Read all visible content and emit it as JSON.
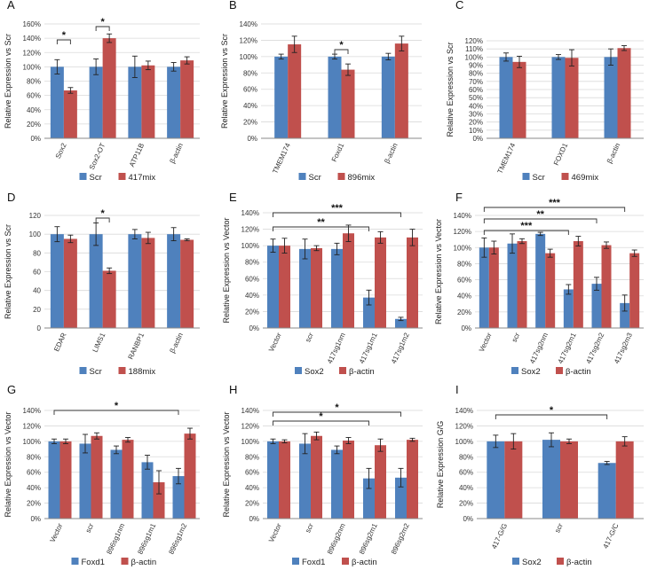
{
  "figure": {
    "colors": {
      "blue": "#4f81bd",
      "red": "#c0504d",
      "grid": "#d9d9d9",
      "axis": "#888888",
      "err": "#222222"
    }
  },
  "chart_data": [
    {
      "panel": "A",
      "type": "bar",
      "ylabel": "Relative Expression vs Scr",
      "ylim": [
        0,
        160
      ],
      "yticks": [
        "0%",
        "20%",
        "40%",
        "60%",
        "80%",
        "100%",
        "120%",
        "140%",
        "160%"
      ],
      "categories": [
        "Sox2",
        "Sox2-OT",
        "ATP11B",
        "β-actin"
      ],
      "series": [
        {
          "name": "Scr",
          "color": "blue",
          "values": [
            100,
            100,
            100,
            100
          ],
          "errors": [
            10,
            11,
            15,
            6
          ]
        },
        {
          "name": "417mix",
          "color": "red",
          "values": [
            67,
            140,
            102,
            109
          ],
          "errors": [
            4,
            6,
            6,
            5
          ]
        }
      ],
      "significance": [
        {
          "from": [
            0,
            0
          ],
          "to": [
            0,
            1
          ],
          "label": "*"
        },
        {
          "from": [
            1,
            0
          ],
          "to": [
            1,
            1
          ],
          "label": "*"
        }
      ]
    },
    {
      "panel": "B",
      "type": "bar",
      "ylabel": "Relative Expression vs Scr",
      "ylim": [
        0,
        140
      ],
      "yticks": [
        "0%",
        "20%",
        "40%",
        "60%",
        "80%",
        "100%",
        "120%",
        "140%"
      ],
      "categories": [
        "TMEM174",
        "Foxd1",
        "β-actin"
      ],
      "series": [
        {
          "name": "Scr",
          "color": "blue",
          "values": [
            100,
            100,
            100
          ],
          "errors": [
            3,
            3,
            4
          ]
        },
        {
          "name": "896mix",
          "color": "red",
          "values": [
            115,
            84,
            116
          ],
          "errors": [
            10,
            7,
            9
          ]
        }
      ],
      "significance": [
        {
          "from": [
            1,
            0
          ],
          "to": [
            1,
            1
          ],
          "label": "*"
        }
      ]
    },
    {
      "panel": "C",
      "type": "bar",
      "ylabel": "Relative Expression vs Scr",
      "ylim": [
        0,
        120
      ],
      "yticks": [
        "0%",
        "10%",
        "20%",
        "30%",
        "40%",
        "50%",
        "60%",
        "70%",
        "80%",
        "90%",
        "100%",
        "110%",
        "120%"
      ],
      "categories": [
        "TMEM174",
        "FOXD1",
        "β-actin"
      ],
      "series": [
        {
          "name": "Scr",
          "color": "blue",
          "values": [
            100,
            100,
            100
          ],
          "errors": [
            5,
            3,
            10
          ]
        },
        {
          "name": "469mix",
          "color": "red",
          "values": [
            94,
            99,
            111
          ],
          "errors": [
            7,
            10,
            3
          ]
        }
      ],
      "significance": []
    },
    {
      "panel": "D",
      "type": "bar",
      "ylabel": "Relative Expression vs Scr",
      "ylim": [
        0,
        120
      ],
      "yticks": [
        "0",
        "20",
        "40",
        "60",
        "80",
        "100",
        "120"
      ],
      "categories": [
        "EDAR",
        "LIMS1",
        "RANBP1",
        "β-actin"
      ],
      "series": [
        {
          "name": "Scr",
          "color": "blue",
          "values": [
            100,
            100,
            100,
            100
          ],
          "errors": [
            8,
            12,
            5,
            7
          ]
        },
        {
          "name": "188mix",
          "color": "red",
          "values": [
            95,
            61,
            96,
            94
          ],
          "errors": [
            4,
            3,
            6,
            1
          ]
        }
      ],
      "significance": [
        {
          "from": [
            1,
            0
          ],
          "to": [
            1,
            1
          ],
          "label": "*"
        }
      ]
    },
    {
      "panel": "E",
      "type": "bar",
      "ylabel": "Relative Expression vs Vector",
      "ylim": [
        0,
        140
      ],
      "yticks": [
        "0%",
        "20%",
        "40%",
        "60%",
        "80%",
        "100%",
        "120%",
        "140%"
      ],
      "categories": [
        "Vector",
        "scr",
        "417sg1nm",
        "417sg1m1",
        "417sg1m2"
      ],
      "series": [
        {
          "name": "Sox2",
          "color": "blue",
          "values": [
            100,
            96,
            96,
            37,
            11
          ],
          "errors": [
            8,
            12,
            7,
            9,
            2
          ]
        },
        {
          "name": "β-actin",
          "color": "red",
          "values": [
            100,
            97,
            115,
            110,
            110
          ],
          "errors": [
            9,
            3,
            10,
            7,
            10
          ]
        }
      ],
      "significance": [
        {
          "from": [
            0,
            0
          ],
          "to": [
            3,
            0
          ],
          "label": "**"
        },
        {
          "from": [
            0,
            0
          ],
          "to": [
            4,
            0
          ],
          "label": "***"
        }
      ]
    },
    {
      "panel": "F",
      "type": "bar",
      "ylabel": "Relative Expression vs Vector",
      "ylim": [
        0,
        140
      ],
      "yticks": [
        "0%",
        "20%",
        "40%",
        "60%",
        "80%",
        "100%",
        "120%",
        "140%"
      ],
      "categories": [
        "Vector",
        "scr",
        "417sg2nm",
        "417sg2m1",
        "417sg2m2",
        "417sg2m3"
      ],
      "series": [
        {
          "name": "Sox2",
          "color": "blue",
          "values": [
            100,
            105,
            117,
            48,
            55,
            31
          ],
          "errors": [
            12,
            12,
            2,
            6,
            8,
            10
          ]
        },
        {
          "name": "β-actin",
          "color": "red",
          "values": [
            100,
            108,
            93,
            108,
            103,
            93
          ],
          "errors": [
            8,
            3,
            5,
            6,
            4,
            4
          ]
        }
      ],
      "significance": [
        {
          "from": [
            0,
            0
          ],
          "to": [
            3,
            0
          ],
          "label": "***"
        },
        {
          "from": [
            0,
            0
          ],
          "to": [
            4,
            0
          ],
          "label": "**"
        },
        {
          "from": [
            0,
            0
          ],
          "to": [
            5,
            0
          ],
          "label": "***"
        }
      ]
    },
    {
      "panel": "G",
      "type": "bar",
      "ylabel": "Relative Expression vs Vector",
      "ylim": [
        0,
        140
      ],
      "yticks": [
        "0%",
        "20%",
        "40%",
        "60%",
        "80%",
        "100%",
        "120%",
        "140%"
      ],
      "categories": [
        "Vector",
        "scr",
        "896sg1nm",
        "896sg1m1",
        "896sg1m2"
      ],
      "series": [
        {
          "name": "Foxd1",
          "color": "blue",
          "values": [
            100,
            97,
            89,
            73,
            55
          ],
          "errors": [
            3,
            12,
            5,
            9,
            10
          ]
        },
        {
          "name": "β-actin",
          "color": "red",
          "values": [
            100,
            107,
            102,
            47,
            110
          ],
          "errors": [
            3,
            4,
            3,
            15,
            7
          ]
        }
      ],
      "significance": [
        {
          "from": [
            0,
            0
          ],
          "to": [
            4,
            0
          ],
          "label": "*"
        }
      ]
    },
    {
      "panel": "H",
      "type": "bar",
      "ylabel": "Relative Expression vs Vector",
      "ylim": [
        0,
        140
      ],
      "yticks": [
        "0%",
        "20%",
        "40%",
        "60%",
        "80%",
        "100%",
        "120%",
        "140%"
      ],
      "categories": [
        "Vector",
        "scr",
        "896sg2nm",
        "896sg2m1",
        "896sg2m2"
      ],
      "series": [
        {
          "name": "Foxd1",
          "color": "blue",
          "values": [
            100,
            97,
            89,
            52,
            53
          ],
          "errors": [
            3,
            13,
            5,
            13,
            12
          ]
        },
        {
          "name": "β-actin",
          "color": "red",
          "values": [
            100,
            107,
            101,
            95,
            102
          ],
          "errors": [
            2,
            5,
            4,
            8,
            2
          ]
        }
      ],
      "significance": [
        {
          "from": [
            0,
            0
          ],
          "to": [
            3,
            0
          ],
          "label": "*"
        },
        {
          "from": [
            0,
            0
          ],
          "to": [
            4,
            0
          ],
          "label": "*"
        }
      ]
    },
    {
      "panel": "I",
      "type": "bar",
      "ylabel": "Relative Expression G/G",
      "ylim": [
        0,
        140
      ],
      "yticks": [
        "0%",
        "20%",
        "40%",
        "60%",
        "80%",
        "100%",
        "120%",
        "140%"
      ],
      "categories": [
        "417-G/G",
        "scr",
        "417-G/C"
      ],
      "series": [
        {
          "name": "Sox2",
          "color": "blue",
          "values": [
            100,
            102,
            72
          ],
          "errors": [
            8,
            9,
            2
          ]
        },
        {
          "name": "β-actin",
          "color": "red",
          "values": [
            100,
            100,
            100
          ],
          "errors": [
            10,
            3,
            6
          ]
        }
      ],
      "significance": [
        {
          "from": [
            0,
            0
          ],
          "to": [
            2,
            0
          ],
          "label": "*"
        }
      ]
    }
  ]
}
